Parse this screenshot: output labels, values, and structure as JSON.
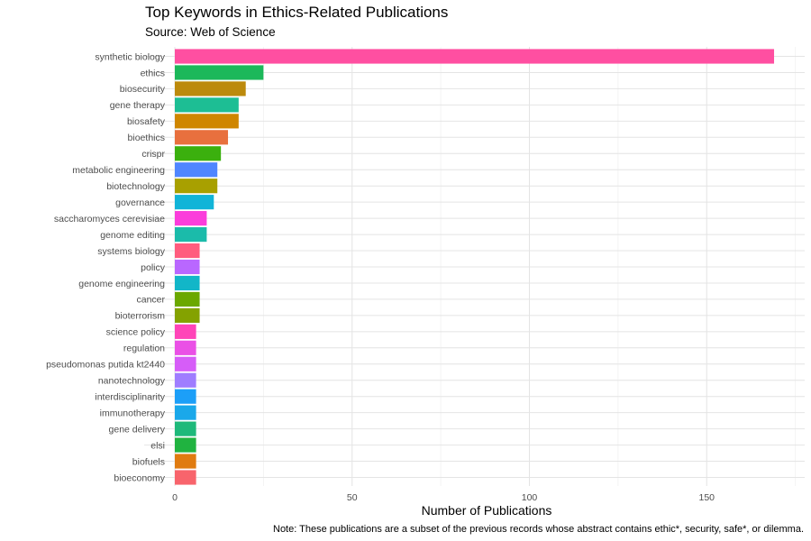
{
  "chart_data": {
    "type": "bar",
    "orientation": "horizontal",
    "title": "Top Keywords in Ethics-Related Publications",
    "subtitle": "Source: Web of Science",
    "xlabel": "Number of Publications",
    "ylabel": "",
    "caption": "Note: These publications are a subset of the previous records whose abstract contains ethic*, security, safe*, or dilemma.",
    "xlim": [
      0,
      175
    ],
    "x_ticks": [
      0,
      50,
      100,
      150
    ],
    "grid": true,
    "legend": "none",
    "categories": [
      "synthetic biology",
      "ethics",
      "biosecurity",
      "gene therapy",
      "biosafety",
      "bioethics",
      "crispr",
      "metabolic engineering",
      "biotechnology",
      "governance",
      "saccharomyces cerevisiae",
      "genome editing",
      "systems biology",
      "policy",
      "genome engineering",
      "cancer",
      "bioterrorism",
      "science policy",
      "regulation",
      "pseudomonas putida kt2440",
      "nanotechnology",
      "interdisciplinarity",
      "immunotherapy",
      "gene delivery",
      "elsi",
      "biofuels",
      "bioeconomy"
    ],
    "values": [
      169,
      25,
      20,
      18,
      18,
      15,
      13,
      12,
      12,
      11,
      9,
      9,
      7,
      7,
      7,
      7,
      7,
      6,
      6,
      6,
      6,
      6,
      6,
      6,
      6,
      6,
      6
    ],
    "colors": [
      "#FF4FA1",
      "#1CB85A",
      "#BC8A0C",
      "#1DBE94",
      "#CF8600",
      "#E8703E",
      "#3BB00E",
      "#5086FF",
      "#A8A000",
      "#11B4D8",
      "#FB3DDB",
      "#1BBBAA",
      "#FF5C7E",
      "#B967FF",
      "#12B6C8",
      "#6BA800",
      "#84A200",
      "#FF44B8",
      "#EA50E6",
      "#D65DF8",
      "#9F7DFF",
      "#1C9FF8",
      "#1AA8EA",
      "#1EB97A",
      "#20B340",
      "#E07B10",
      "#F8646C"
    ]
  }
}
